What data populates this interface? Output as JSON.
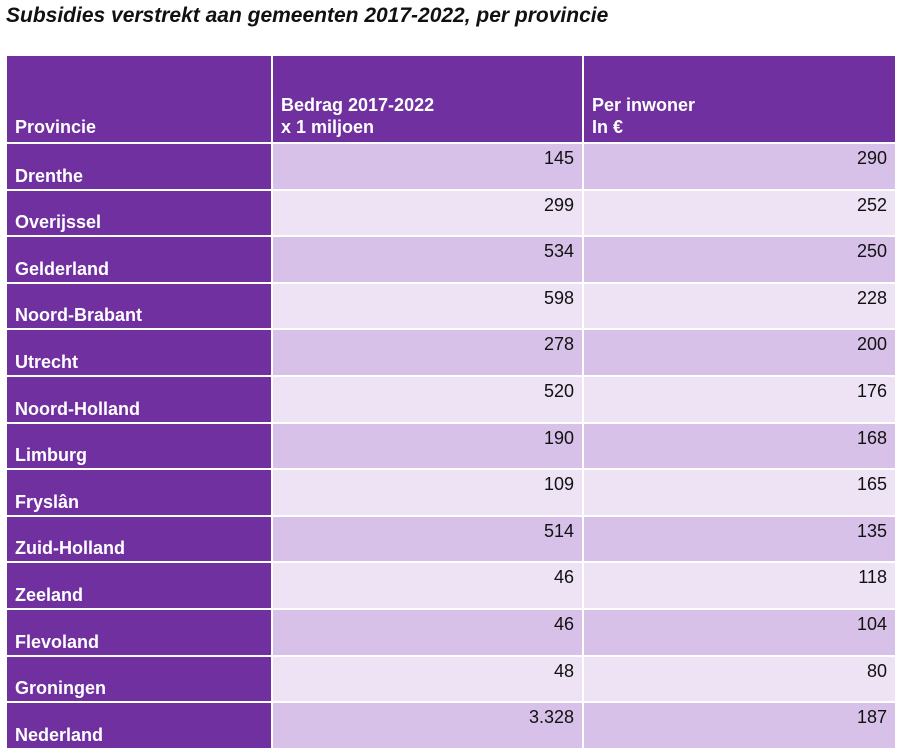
{
  "title": "Subsidies verstrekt aan gemeenten 2017-2022, per provincie",
  "columns": {
    "provincie": "Provincie",
    "bedrag_line1": "Bedrag 2017-2022",
    "bedrag_line2": "x 1 miljoen",
    "inwoner_line1": "Per inwoner",
    "inwoner_line2": "In €"
  },
  "rows": [
    {
      "provincie": "Drenthe",
      "bedrag": "145",
      "per_inwoner": "290"
    },
    {
      "provincie": "Overijssel",
      "bedrag": "299",
      "per_inwoner": "252"
    },
    {
      "provincie": "Gelderland",
      "bedrag": "534",
      "per_inwoner": "250"
    },
    {
      "provincie": "Noord-Brabant",
      "bedrag": "598",
      "per_inwoner": "228"
    },
    {
      "provincie": "Utrecht",
      "bedrag": "278",
      "per_inwoner": "200"
    },
    {
      "provincie": "Noord-Holland",
      "bedrag": "520",
      "per_inwoner": "176"
    },
    {
      "provincie": "Limburg",
      "bedrag": "190",
      "per_inwoner": "168"
    },
    {
      "provincie": "Fryslân",
      "bedrag": "109",
      "per_inwoner": "165"
    },
    {
      "provincie": "Zuid-Holland",
      "bedrag": "514",
      "per_inwoner": "135"
    },
    {
      "provincie": "Zeeland",
      "bedrag": "46",
      "per_inwoner": "118"
    },
    {
      "provincie": "Flevoland",
      "bedrag": "46",
      "per_inwoner": "104"
    },
    {
      "provincie": "Groningen",
      "bedrag": "48",
      "per_inwoner": "80"
    },
    {
      "provincie": "Nederland",
      "bedrag": "3.328",
      "per_inwoner": "187"
    }
  ],
  "colors": {
    "header": "#7030a0",
    "row_odd": "#d8c1e9",
    "row_even": "#ede3f4"
  }
}
